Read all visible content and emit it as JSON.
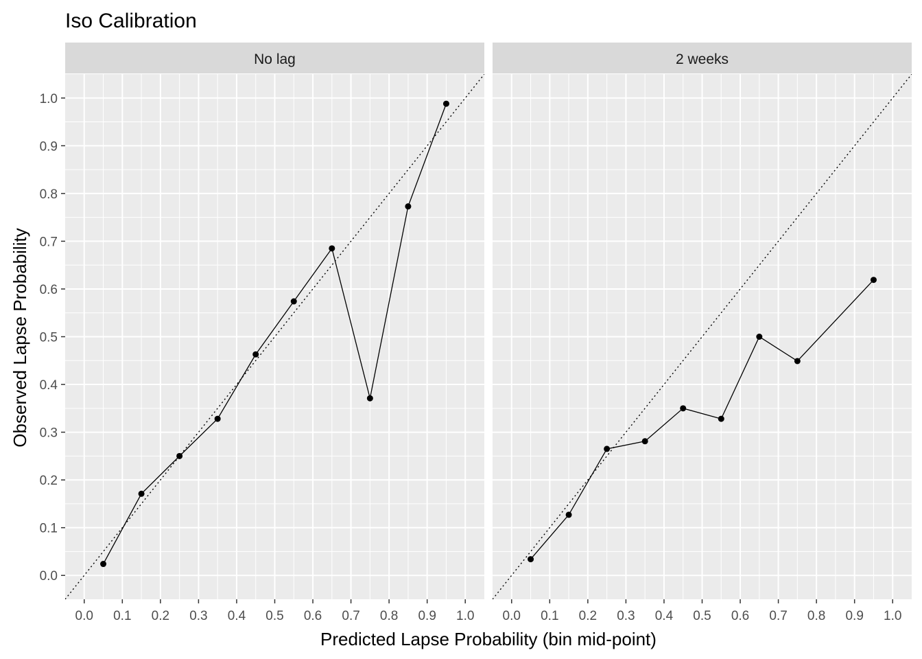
{
  "title": "Iso Calibration",
  "xlabel": "Predicted Lapse Probability (bin mid-point)",
  "ylabel": "Observed Lapse Probability",
  "ticks": [
    "0.0",
    "0.1",
    "0.2",
    "0.3",
    "0.4",
    "0.5",
    "0.6",
    "0.7",
    "0.8",
    "0.9",
    "1.0"
  ],
  "colors": {
    "panel_bg": "#EBEBEB",
    "strip_bg": "#D9D9D9",
    "grid": "#FFFFFF",
    "line": "#000000",
    "tick_text": "#4D4D4D",
    "text": "#000000"
  },
  "chart_data": {
    "type": "line",
    "title": "Iso Calibration",
    "xlabel": "Predicted Lapse Probability (bin mid-point)",
    "ylabel": "Observed Lapse Probability",
    "xlim": [
      -0.05,
      1.05
    ],
    "ylim": [
      -0.05,
      1.05
    ],
    "grid": true,
    "reference_line": "y = x (dotted)",
    "panels": [
      {
        "strip": "No lag",
        "x": [
          0.05,
          0.15,
          0.25,
          0.35,
          0.45,
          0.55,
          0.65,
          0.75,
          0.85,
          0.95
        ],
        "y": [
          0.024,
          0.171,
          0.25,
          0.328,
          0.463,
          0.574,
          0.685,
          0.371,
          0.773,
          0.988
        ]
      },
      {
        "strip": "2 weeks",
        "x": [
          0.05,
          0.15,
          0.25,
          0.35,
          0.45,
          0.55,
          0.65,
          0.75,
          0.85,
          0.95
        ],
        "y": [
          0.034,
          0.127,
          0.265,
          0.281,
          0.35,
          0.328,
          0.5,
          0.449,
          null,
          0.619
        ]
      }
    ]
  }
}
